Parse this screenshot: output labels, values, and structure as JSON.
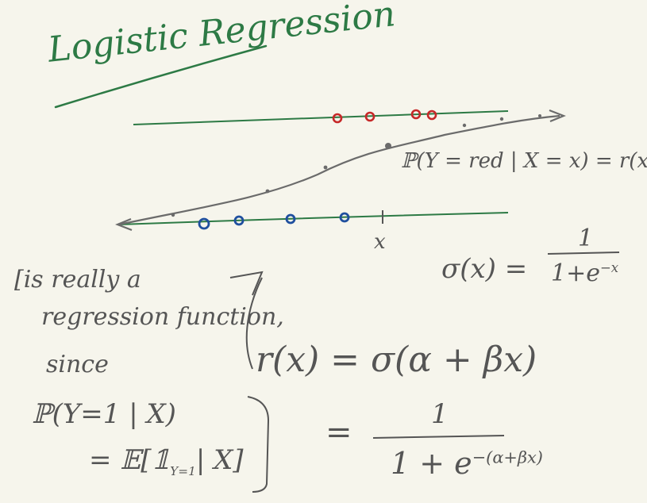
{
  "title": "Logistic Regression",
  "axis_label_x": "x",
  "prob_expr": "ℙ(Y = red | X = x) = r(x)",
  "sigma_lhs": "σ(x) =",
  "sigma_num": "1",
  "sigma_den_base": "1+e",
  "sigma_den_exp": "−x",
  "note_line1": "[is really a",
  "note_line2": "regression function,",
  "note_line3": "since",
  "r_def": "r(x) = σ(α + βx)",
  "p_line": "ℙ(Y=1 | X)",
  "e_line_pre": "= 𝔼[",
  "e_indicator": "𝟙",
  "e_indicator_sub": "Y=1",
  "e_line_post": "| X]",
  "final_eq": "=",
  "final_num": "1",
  "final_den_base": "1 + e",
  "final_den_exp": "−(α+βx)",
  "colors": {
    "background": "#f6f5ec",
    "green": "#2d7a45",
    "red": "#c62828",
    "blue": "#1f4f9e",
    "ink": "#555555"
  }
}
